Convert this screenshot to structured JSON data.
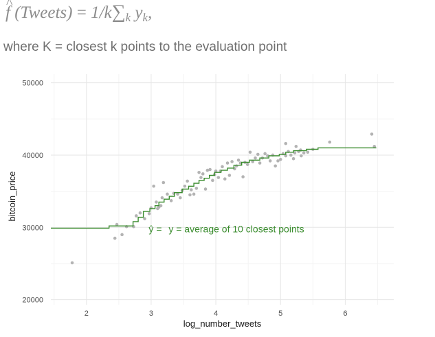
{
  "formula": {
    "lhs_symbol": "f",
    "lhs_arg": "(Tweets)",
    "equals": "=",
    "rhs_prefix": "1/k",
    "sum_symbol": "∑",
    "sum_subscript": "k",
    "term": "y",
    "term_subscript": "k",
    "trailing": ","
  },
  "caption": "where K = closest k points to the evaluation point",
  "chart_data": {
    "type": "scatter",
    "xlabel": "log_number_tweets",
    "ylabel": "bitcoin_price",
    "xlim": [
      1.45,
      6.75
    ],
    "ylim": [
      19300,
      51200
    ],
    "x_ticks": [
      2,
      3,
      4,
      5,
      6
    ],
    "x_tick_labels": [
      "2",
      "3",
      "4",
      "5",
      "6"
    ],
    "y_ticks": [
      20000,
      30000,
      40000,
      50000
    ],
    "y_tick_labels": [
      "20000",
      "30000",
      "40000",
      "50000"
    ],
    "grid": true,
    "point_color": "#b3b3b3",
    "line_color": "#3a8c2e",
    "annotation": {
      "text": "y = average of 10 closest points",
      "hat_symbol": "ŷ",
      "equals": "=",
      "x": 3.27,
      "y": 29800,
      "color": "#3a8c2e"
    },
    "points": [
      [
        1.78,
        25100
      ],
      [
        2.44,
        28500
      ],
      [
        2.55,
        29000
      ],
      [
        2.47,
        30400
      ],
      [
        2.62,
        30100
      ],
      [
        2.73,
        30100
      ],
      [
        2.77,
        31600
      ],
      [
        2.83,
        32000
      ],
      [
        2.9,
        31200
      ],
      [
        2.97,
        31900
      ],
      [
        3.0,
        32700
      ],
      [
        3.04,
        35700
      ],
      [
        3.1,
        32600
      ],
      [
        3.15,
        33000
      ],
      [
        3.19,
        36200
      ],
      [
        3.08,
        33500
      ],
      [
        3.12,
        32800
      ],
      [
        3.17,
        34100
      ],
      [
        3.25,
        34600
      ],
      [
        3.31,
        33700
      ],
      [
        3.35,
        34700
      ],
      [
        3.41,
        34600
      ],
      [
        3.45,
        34100
      ],
      [
        3.48,
        35100
      ],
      [
        3.52,
        35700
      ],
      [
        3.56,
        36400
      ],
      [
        3.6,
        34500
      ],
      [
        3.62,
        35200
      ],
      [
        3.66,
        34600
      ],
      [
        3.7,
        35400
      ],
      [
        3.74,
        37600
      ],
      [
        3.77,
        36900
      ],
      [
        3.8,
        37400
      ],
      [
        3.84,
        35300
      ],
      [
        3.87,
        37900
      ],
      [
        3.91,
        38000
      ],
      [
        3.95,
        36500
      ],
      [
        3.98,
        37300
      ],
      [
        4.0,
        37800
      ],
      [
        4.04,
        36900
      ],
      [
        4.07,
        37800
      ],
      [
        4.1,
        38400
      ],
      [
        4.14,
        36700
      ],
      [
        4.18,
        38900
      ],
      [
        4.21,
        37200
      ],
      [
        4.25,
        39100
      ],
      [
        4.29,
        38100
      ],
      [
        4.32,
        38500
      ],
      [
        4.35,
        39300
      ],
      [
        4.38,
        38900
      ],
      [
        4.42,
        37000
      ],
      [
        4.45,
        39000
      ],
      [
        4.49,
        38700
      ],
      [
        4.53,
        40400
      ],
      [
        4.57,
        39100
      ],
      [
        4.61,
        39600
      ],
      [
        4.65,
        40100
      ],
      [
        4.68,
        38900
      ],
      [
        4.72,
        39600
      ],
      [
        4.76,
        40200
      ],
      [
        4.8,
        39900
      ],
      [
        4.84,
        39200
      ],
      [
        4.88,
        40000
      ],
      [
        4.92,
        38500
      ],
      [
        4.96,
        39200
      ],
      [
        5.0,
        39400
      ],
      [
        5.04,
        40200
      ],
      [
        5.08,
        41600
      ],
      [
        5.12,
        40500
      ],
      [
        5.16,
        40000
      ],
      [
        5.2,
        39500
      ],
      [
        5.24,
        41200
      ],
      [
        5.28,
        40500
      ],
      [
        5.31,
        40700
      ],
      [
        5.36,
        40300
      ],
      [
        5.42,
        40400
      ],
      [
        5.5,
        40800
      ],
      [
        5.08,
        39900
      ],
      [
        5.22,
        40300
      ],
      [
        5.32,
        39900
      ],
      [
        5.76,
        41800
      ],
      [
        6.41,
        42900
      ],
      [
        6.45,
        41200
      ]
    ],
    "fit_line": [
      [
        1.45,
        29900
      ],
      [
        2.35,
        29900
      ],
      [
        2.35,
        30200
      ],
      [
        2.72,
        30200
      ],
      [
        2.72,
        30800
      ],
      [
        2.8,
        30800
      ],
      [
        2.8,
        31400
      ],
      [
        2.88,
        31400
      ],
      [
        2.88,
        32200
      ],
      [
        2.98,
        32200
      ],
      [
        2.98,
        32600
      ],
      [
        3.06,
        32600
      ],
      [
        3.06,
        33000
      ],
      [
        3.12,
        33000
      ],
      [
        3.12,
        33500
      ],
      [
        3.2,
        33500
      ],
      [
        3.2,
        33900
      ],
      [
        3.28,
        33900
      ],
      [
        3.28,
        34300
      ],
      [
        3.36,
        34300
      ],
      [
        3.36,
        34800
      ],
      [
        3.48,
        34800
      ],
      [
        3.48,
        35300
      ],
      [
        3.58,
        35300
      ],
      [
        3.58,
        35700
      ],
      [
        3.66,
        35700
      ],
      [
        3.66,
        36100
      ],
      [
        3.74,
        36100
      ],
      [
        3.74,
        36500
      ],
      [
        3.82,
        36500
      ],
      [
        3.82,
        36800
      ],
      [
        3.9,
        36800
      ],
      [
        3.9,
        37200
      ],
      [
        3.98,
        37200
      ],
      [
        3.98,
        37600
      ],
      [
        4.08,
        37600
      ],
      [
        4.08,
        37900
      ],
      [
        4.18,
        37900
      ],
      [
        4.18,
        38200
      ],
      [
        4.28,
        38200
      ],
      [
        4.28,
        38600
      ],
      [
        4.4,
        38600
      ],
      [
        4.4,
        39000
      ],
      [
        4.52,
        39000
      ],
      [
        4.52,
        39300
      ],
      [
        4.68,
        39300
      ],
      [
        4.68,
        39600
      ],
      [
        4.82,
        39600
      ],
      [
        4.82,
        39900
      ],
      [
        4.98,
        39900
      ],
      [
        4.98,
        40100
      ],
      [
        5.08,
        40100
      ],
      [
        5.08,
        40400
      ],
      [
        5.2,
        40400
      ],
      [
        5.2,
        40600
      ],
      [
        5.4,
        40600
      ],
      [
        5.4,
        40800
      ],
      [
        5.58,
        40800
      ],
      [
        5.58,
        41000
      ],
      [
        6.48,
        41000
      ]
    ]
  }
}
